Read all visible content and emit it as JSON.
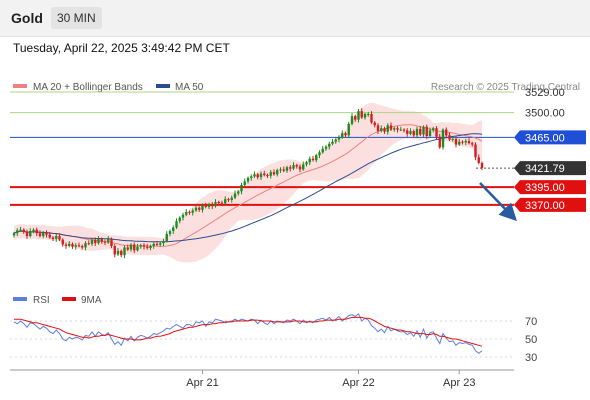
{
  "header": {
    "symbol": "Gold",
    "interval": "30 MIN"
  },
  "timestamp": "Tuesday, April 22, 2025 3:49:42 PM CET",
  "colors": {
    "up_candle": "#1f8a1f",
    "down_candle": "#d41f1f",
    "ma20": "#f08080",
    "bollinger_fill": "#fbd5d5",
    "ma50": "#2a4d8f",
    "resistance": "#1f4fd6",
    "support": "#e01010",
    "target": "#a8d882",
    "last_price": "#333333",
    "rsi": "#5b7fe0",
    "rsi_ma": "#e01010",
    "arrow": "#2a5aa0"
  },
  "chart_data": [
    {
      "type": "candlestick",
      "legend": [
        {
          "name": "MA 20 + Bollinger Bands",
          "color": "#f08080"
        },
        {
          "name": "MA 50",
          "color": "#2a4d8f"
        }
      ],
      "watermark": "Research © 2025 Trading Central",
      "ylim": [
        3250,
        3560
      ],
      "x_ticks": [
        {
          "label": "Apr 21",
          "index": 58
        },
        {
          "label": "Apr 22",
          "index": 106
        },
        {
          "label": "Apr 23",
          "index": 137
        }
      ],
      "levels": [
        {
          "label": "3529.00",
          "value": 3529.0,
          "kind": "target"
        },
        {
          "label": "3500.00",
          "value": 3500.0,
          "kind": "target"
        },
        {
          "label": "3465.00",
          "value": 3465.0,
          "kind": "resistance"
        },
        {
          "label": "3421.79",
          "value": 3421.79,
          "kind": "last"
        },
        {
          "label": "3395.00",
          "value": 3395.0,
          "kind": "support"
        },
        {
          "label": "3370.00",
          "value": 3370.0,
          "kind": "support"
        }
      ],
      "close": [
        3330,
        3334,
        3335,
        3332,
        3326,
        3333,
        3335,
        3330,
        3326,
        3331,
        3328,
        3324,
        3322,
        3326,
        3321,
        3314,
        3312,
        3315,
        3311,
        3313,
        3312,
        3310,
        3316,
        3315,
        3321,
        3316,
        3322,
        3318,
        3317,
        3322,
        3312,
        3300,
        3305,
        3299,
        3310,
        3307,
        3314,
        3306,
        3311,
        3313,
        3311,
        3309,
        3312,
        3315,
        3314,
        3316,
        3319,
        3329,
        3333,
        3338,
        3347,
        3352,
        3356,
        3360,
        3359,
        3362,
        3366,
        3363,
        3369,
        3367,
        3371,
        3368,
        3374,
        3373,
        3372,
        3378,
        3377,
        3380,
        3386,
        3389,
        3398,
        3403,
        3408,
        3410,
        3413,
        3409,
        3414,
        3412,
        3411,
        3416,
        3413,
        3419,
        3420,
        3418,
        3423,
        3421,
        3426,
        3424,
        3420,
        3427,
        3430,
        3435,
        3433,
        3440,
        3444,
        3449,
        3452,
        3456,
        3459,
        3462,
        3465,
        3471,
        3468,
        3484,
        3495,
        3490,
        3502,
        3493,
        3498,
        3498,
        3486,
        3482,
        3474,
        3478,
        3473,
        3482,
        3476,
        3478,
        3476,
        3476,
        3475,
        3470,
        3474,
        3468,
        3477,
        3469,
        3480,
        3467,
        3475,
        3478,
        3466,
        3451,
        3476,
        3468,
        3462,
        3463,
        3455,
        3459,
        3458,
        3460,
        3457,
        3455,
        3437,
        3429,
        3422
      ]
    },
    {
      "type": "line",
      "legend": [
        {
          "name": "RSI",
          "color": "#5b7fe0"
        },
        {
          "name": "9MA",
          "color": "#e01010"
        }
      ],
      "ylim": [
        20,
        80
      ],
      "y_ticks": [
        70,
        50,
        30
      ],
      "series": [
        {
          "name": "RSI",
          "values": [
            69,
            67,
            70,
            67,
            63,
            68,
            67,
            64,
            61,
            64,
            62,
            58,
            56,
            60,
            56,
            50,
            48,
            52,
            50,
            52,
            51,
            49,
            54,
            53,
            58,
            53,
            58,
            55,
            54,
            57,
            50,
            44,
            47,
            43,
            51,
            48,
            53,
            48,
            52,
            54,
            53,
            51,
            53,
            56,
            55,
            57,
            59,
            62,
            61,
            64,
            66,
            64,
            62,
            66,
            66,
            64,
            69,
            68,
            70,
            64,
            69,
            68,
            72,
            71,
            70,
            68,
            69,
            70,
            72,
            70,
            72,
            71,
            70,
            72,
            71,
            67,
            71,
            68,
            66,
            70,
            67,
            70,
            69,
            68,
            71,
            70,
            72,
            70,
            67,
            71,
            68,
            70,
            68,
            71,
            72,
            73,
            71,
            74,
            70,
            72,
            75,
            70,
            73,
            76,
            77,
            75,
            78,
            70,
            73,
            71,
            65,
            62,
            58,
            61,
            57,
            64,
            59,
            61,
            59,
            58,
            58,
            55,
            57,
            53,
            59,
            52,
            61,
            51,
            57,
            58,
            51,
            45,
            56,
            51,
            47,
            48,
            43,
            46,
            45,
            46,
            44,
            43,
            37,
            34,
            37
          ]
        },
        {
          "name": "9MA",
          "values": [
            72,
            72,
            72,
            71,
            70,
            69,
            68,
            68,
            67,
            66,
            65,
            64,
            63,
            62,
            61,
            59,
            57,
            56,
            55,
            54,
            53,
            52,
            52,
            51,
            52,
            53,
            53,
            54,
            54,
            55,
            54,
            53,
            52,
            51,
            50,
            50,
            50,
            49,
            49,
            49,
            50,
            51,
            51,
            52,
            53,
            53,
            54,
            55,
            56,
            58,
            59,
            60,
            61,
            62,
            63,
            63,
            64,
            65,
            66,
            66,
            66,
            67,
            67,
            68,
            68,
            69,
            69,
            69,
            70,
            70,
            70,
            70,
            70,
            71,
            71,
            71,
            70,
            70,
            70,
            70,
            69,
            69,
            69,
            69,
            69,
            69,
            70,
            70,
            70,
            69,
            69,
            69,
            69,
            69,
            70,
            70,
            71,
            71,
            71,
            71,
            72,
            72,
            72,
            73,
            74,
            74,
            74,
            74,
            73,
            73,
            72,
            70,
            68,
            66,
            64,
            63,
            62,
            61,
            60,
            60,
            59,
            58,
            58,
            57,
            56,
            56,
            56,
            55,
            55,
            56,
            55,
            53,
            53,
            52,
            51,
            50,
            50,
            49,
            48,
            47,
            46,
            45,
            44,
            43,
            42
          ]
        }
      ]
    }
  ]
}
